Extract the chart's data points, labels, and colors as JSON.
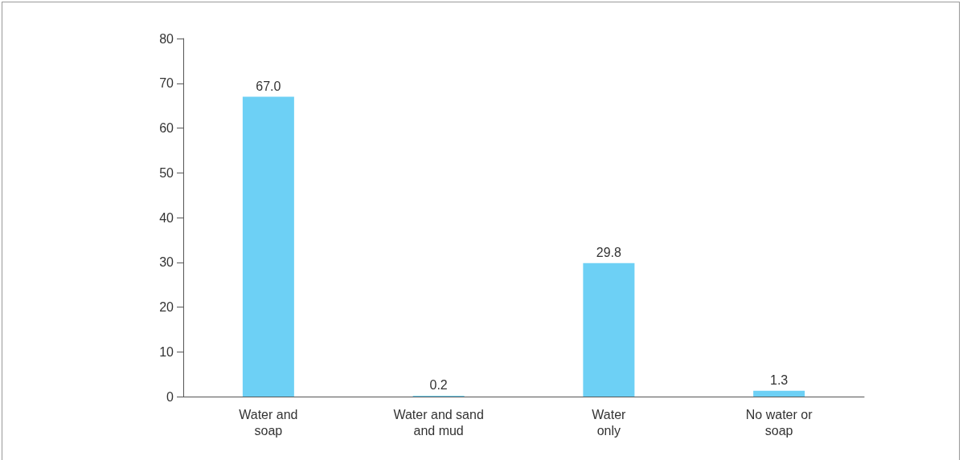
{
  "chart_data": {
    "type": "bar",
    "categories": [
      "Water and\nsoap",
      "Water and sand\nand mud",
      "Water\nonly",
      "No water or\nsoap"
    ],
    "values": [
      67.0,
      0.2,
      29.8,
      1.3
    ],
    "value_labels": [
      "67.0",
      "0.2",
      "29.8",
      "1.3"
    ],
    "color": "#6dd0f5",
    "ylim": [
      0,
      80
    ],
    "yticks": [
      0,
      10,
      20,
      30,
      40,
      50,
      60,
      70,
      80
    ],
    "grid": false
  }
}
